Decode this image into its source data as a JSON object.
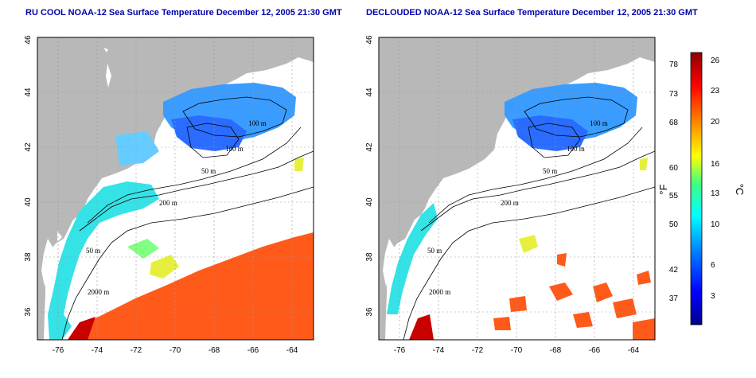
{
  "titles": {
    "left": "RU COOL NOAA-12 Sea Surface Temperature December 12, 2005 21:30 GMT",
    "right": "DECLOUDED NOAA-12 Sea Surface Temperature December 12, 2005 21:30 GMT"
  },
  "map": {
    "lon_ticks": [
      "-76",
      "-74",
      "-72",
      "-70",
      "-68",
      "-66",
      "-64"
    ],
    "lat_ticks": [
      "46",
      "44",
      "42",
      "40",
      "38",
      "36"
    ],
    "contour_labels": [
      "100 m",
      "100 m",
      "50 m",
      "200 m",
      "50 m",
      "2000 m"
    ]
  },
  "colorbar": {
    "fahrenheit_ticks": [
      "78",
      "73",
      "68",
      "60",
      "55",
      "50",
      "42",
      "37"
    ],
    "celsius_ticks": [
      "26",
      "23",
      "20",
      "16",
      "13",
      "10",
      "6",
      "3"
    ],
    "fahrenheit_unit": "°F",
    "celsius_unit": "°C",
    "colors": [
      "#00008b",
      "#0000ff",
      "#0080ff",
      "#00ffff",
      "#40ff80",
      "#ffff00",
      "#ff8000",
      "#ff0000",
      "#8b0000"
    ]
  }
}
